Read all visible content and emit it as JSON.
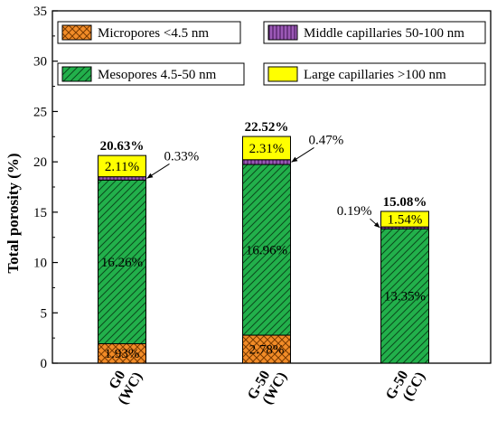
{
  "chart_data": {
    "type": "bar",
    "stacked": true,
    "ylabel": "Total porosity (%)",
    "xlabel": "",
    "ylim": [
      0,
      35
    ],
    "yticks": [
      0,
      5,
      10,
      15,
      20,
      25,
      30,
      35
    ],
    "grid": false,
    "legend_placement": "top",
    "categories": [
      {
        "line1": "G0",
        "line2": "(WC)"
      },
      {
        "line1": "G-50",
        "line2": "(WC)"
      },
      {
        "line1": "G-50",
        "line2": "(CC)"
      }
    ],
    "series": [
      {
        "name": "Micropores <4.5 nm",
        "values": [
          1.93,
          2.78,
          0
        ],
        "labels": [
          "1.93%",
          "2.78%",
          ""
        ],
        "color": "#f28c28",
        "pattern": "crosshatch"
      },
      {
        "name": "Mesopores 4.5-50 nm",
        "values": [
          16.26,
          16.96,
          13.35
        ],
        "labels": [
          "16.26%",
          "16.96%",
          "13.35%"
        ],
        "color": "#22b04b",
        "pattern": "diagonal"
      },
      {
        "name": "Middle capillaries 50-100 nm",
        "values": [
          0.33,
          0.47,
          0.19
        ],
        "labels": [
          "0.33%",
          "0.47%",
          "0.19%"
        ],
        "color": "#9b59b6",
        "pattern": "vertical"
      },
      {
        "name": "Large capillaries >100 nm",
        "values": [
          2.11,
          2.31,
          1.54
        ],
        "labels": [
          "2.11%",
          "2.31%",
          "1.54%"
        ],
        "color": "#ffff00",
        "pattern": "none"
      }
    ],
    "totals": [
      "20.63%",
      "22.52%",
      "15.08%"
    ]
  }
}
